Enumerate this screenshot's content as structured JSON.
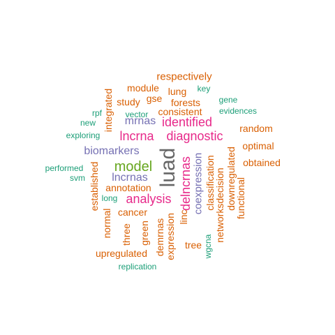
{
  "colors": {
    "orange": "#d95f02",
    "teal": "#1b9e77",
    "purple": "#7570b3",
    "magenta": "#e7298a",
    "green": "#66a61e",
    "gray": "#666666"
  },
  "words": [
    {
      "text": "respectively",
      "color": "orange"
    },
    {
      "text": "module",
      "color": "orange"
    },
    {
      "text": "key",
      "color": "teal"
    },
    {
      "text": "lung",
      "color": "orange"
    },
    {
      "text": "gse",
      "color": "orange"
    },
    {
      "text": "gene",
      "color": "teal"
    },
    {
      "text": "integrated",
      "color": "orange"
    },
    {
      "text": "study",
      "color": "orange"
    },
    {
      "text": "forests",
      "color": "orange"
    },
    {
      "text": "rpf",
      "color": "teal"
    },
    {
      "text": "vector",
      "color": "teal"
    },
    {
      "text": "consistent",
      "color": "orange"
    },
    {
      "text": "evidences",
      "color": "teal"
    },
    {
      "text": "new",
      "color": "teal"
    },
    {
      "text": "mrnas",
      "color": "purple"
    },
    {
      "text": "identified",
      "color": "magenta"
    },
    {
      "text": "random",
      "color": "orange"
    },
    {
      "text": "exploring",
      "color": "teal"
    },
    {
      "text": "lncrna",
      "color": "magenta"
    },
    {
      "text": "diagnostic",
      "color": "magenta"
    },
    {
      "text": "optimal",
      "color": "orange"
    },
    {
      "text": "biomarkers",
      "color": "purple"
    },
    {
      "text": "model",
      "color": "green"
    },
    {
      "text": "luad",
      "color": "gray"
    },
    {
      "text": "delncrnas",
      "color": "magenta"
    },
    {
      "text": "coexpression",
      "color": "purple"
    },
    {
      "text": "classification",
      "color": "orange"
    },
    {
      "text": "downregulated",
      "color": "orange"
    },
    {
      "text": "obtained",
      "color": "orange"
    },
    {
      "text": "performed",
      "color": "teal"
    },
    {
      "text": "svm",
      "color": "teal"
    },
    {
      "text": "lncrnas",
      "color": "purple"
    },
    {
      "text": "established",
      "color": "orange"
    },
    {
      "text": "annotation",
      "color": "orange"
    },
    {
      "text": "long",
      "color": "teal"
    },
    {
      "text": "analysis",
      "color": "magenta"
    },
    {
      "text": "linc",
      "color": "orange"
    },
    {
      "text": "networksdecision",
      "color": "orange"
    },
    {
      "text": "functional",
      "color": "orange"
    },
    {
      "text": "cancer",
      "color": "orange"
    },
    {
      "text": "normal",
      "color": "orange"
    },
    {
      "text": "three",
      "color": "orange"
    },
    {
      "text": "green",
      "color": "orange"
    },
    {
      "text": "demrnas",
      "color": "orange"
    },
    {
      "text": "tree",
      "color": "orange"
    },
    {
      "text": "expression",
      "color": "orange"
    },
    {
      "text": "wgcna",
      "color": "teal"
    },
    {
      "text": "upregulated",
      "color": "orange"
    },
    {
      "text": "replication",
      "color": "teal"
    }
  ]
}
